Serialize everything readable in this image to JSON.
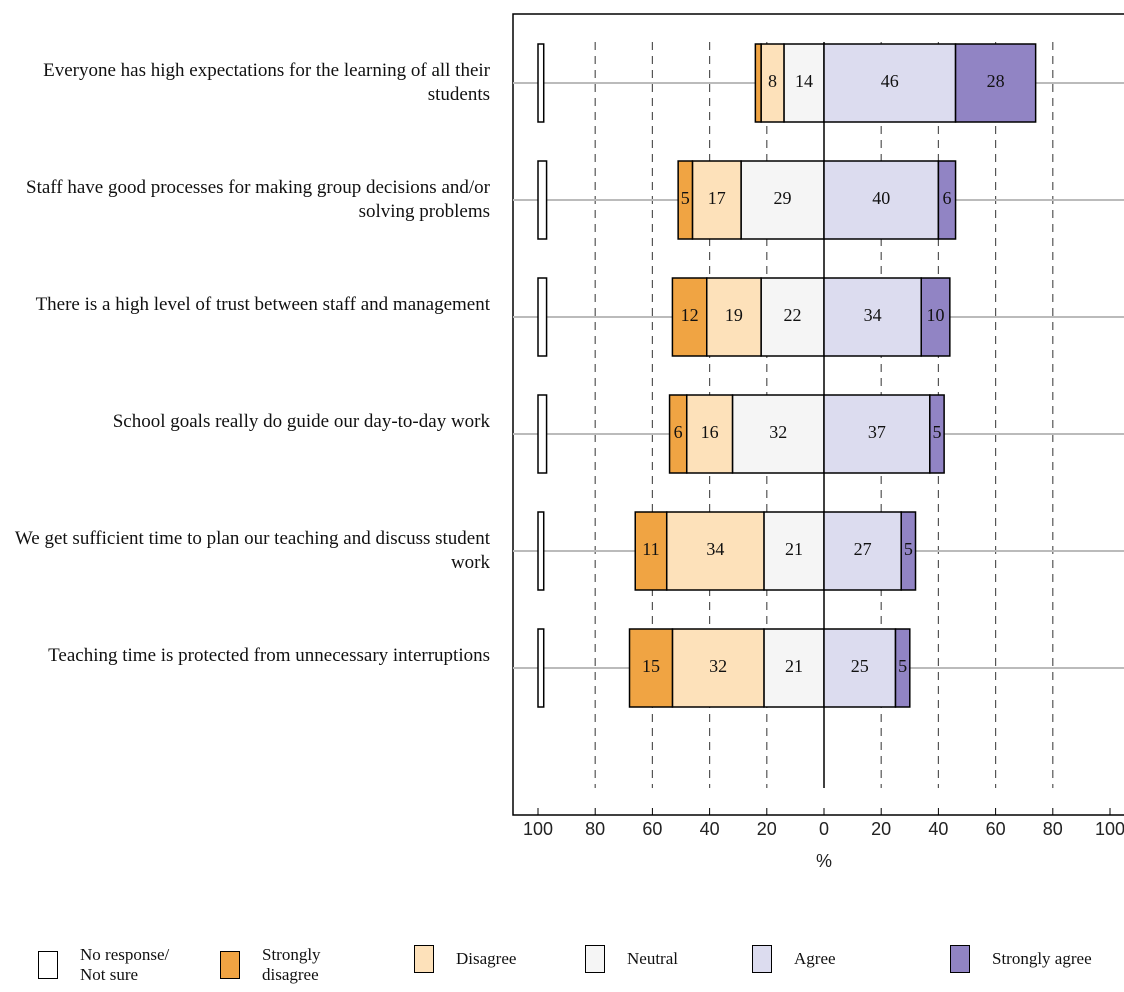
{
  "chart_data": {
    "type": "diverging_bar",
    "categories": [
      "Everyone has high expectations for the learning of all their students",
      "Staff have good processes for making group decisions and/or solving problems",
      "There is a high level of trust between staff and management",
      "School goals really do guide our day-to-day work",
      "We get sufficient time to plan our teaching and discuss student work",
      "Teaching time is protected from unnecessary interruptions"
    ],
    "series": [
      {
        "name": "No response/ Not sure",
        "color": "#ffffff",
        "values": [
          2,
          3,
          3,
          3,
          2,
          2
        ]
      },
      {
        "name": "Strongly disagree",
        "color": "#f0a443",
        "values": [
          2,
          5,
          12,
          6,
          11,
          15
        ]
      },
      {
        "name": "Disagree",
        "color": "#fde1ba",
        "values": [
          8,
          17,
          19,
          16,
          34,
          32
        ]
      },
      {
        "name": "Neutral",
        "color": "#f5f5f5",
        "values": [
          14,
          29,
          22,
          32,
          21,
          21
        ]
      },
      {
        "name": "Agree",
        "color": "#dcdcef",
        "values": [
          46,
          40,
          34,
          37,
          27,
          25
        ]
      },
      {
        "name": "Strongly agree",
        "color": "#9184c4",
        "values": [
          28,
          6,
          10,
          5,
          5,
          5
        ]
      }
    ],
    "xlabel": "%",
    "xlim": [
      -100,
      100
    ],
    "xticks": [
      {
        "value": -100,
        "label": "100"
      },
      {
        "value": -80,
        "label": "80"
      },
      {
        "value": -60,
        "label": "60"
      },
      {
        "value": -40,
        "label": "40"
      },
      {
        "value": -20,
        "label": "20"
      },
      0,
      20,
      40,
      60,
      80,
      100
    ],
    "grid": true
  }
}
